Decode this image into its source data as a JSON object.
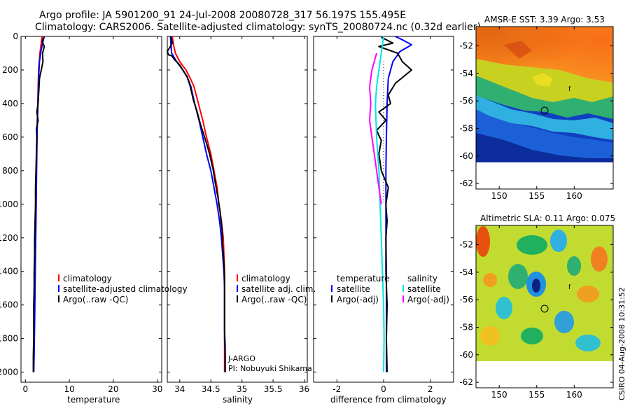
{
  "title_line1": "Argo profile: JA 5901200_91 24-Jul-2008 20080728_317 56.197S 155.495E",
  "title_line2": "Climatology: CARS2006. Satellite-adjusted climatology: synTS_20080724.nc (0.32d earlier)",
  "colors": {
    "clim": "#ff0000",
    "sat": "#0000ff",
    "argo": "#000000",
    "sal_sat": "#00e5e5",
    "sal_argo": "#ff00ff"
  },
  "chart_data": [
    {
      "type": "line",
      "name": "temperature",
      "xlabel": "temperature",
      "ylabel": "",
      "xlim": [
        -1,
        31
      ],
      "ylim": [
        2060,
        0
      ],
      "xticks": [
        0,
        10,
        20,
        30
      ],
      "yticks": [
        0,
        200,
        400,
        600,
        800,
        1000,
        1200,
        1400,
        1600,
        1800,
        2000
      ],
      "legend": [
        "climatology",
        "satellite-adjusted climatology",
        "Argo(..raw -QC)"
      ],
      "series": [
        {
          "name": "climatology",
          "color": "clim",
          "points": [
            [
              3.8,
              0
            ],
            [
              3.6,
              40
            ],
            [
              3.3,
              100
            ],
            [
              3.0,
              200
            ],
            [
              2.9,
              300
            ],
            [
              2.8,
              400
            ],
            [
              2.7,
              500
            ],
            [
              2.6,
              600
            ],
            [
              2.5,
              800
            ],
            [
              2.4,
              1000
            ],
            [
              2.3,
              1200
            ],
            [
              2.2,
              1400
            ],
            [
              2.1,
              1600
            ],
            [
              2.0,
              1800
            ],
            [
              1.9,
              2000
            ]
          ]
        },
        {
          "name": "satellite-adjusted climatology",
          "color": "sat",
          "points": [
            [
              4.3,
              0
            ],
            [
              4.0,
              30
            ],
            [
              3.6,
              80
            ],
            [
              3.2,
              150
            ],
            [
              3.0,
              250
            ],
            [
              2.9,
              350
            ],
            [
              2.8,
              450
            ],
            [
              2.7,
              550
            ],
            [
              2.6,
              700
            ],
            [
              2.5,
              900
            ],
            [
              2.4,
              1100
            ],
            [
              2.3,
              1300
            ],
            [
              2.2,
              1500
            ],
            [
              2.1,
              1700
            ],
            [
              2.0,
              1900
            ],
            [
              1.9,
              2000
            ]
          ]
        },
        {
          "name": "Argo(..raw -QC)",
          "color": "argo",
          "points": [
            [
              4.2,
              5
            ],
            [
              3.8,
              30
            ],
            [
              4.3,
              60
            ],
            [
              3.9,
              100
            ],
            [
              4.0,
              150
            ],
            [
              3.6,
              200
            ],
            [
              3.2,
              250
            ],
            [
              3.1,
              300
            ],
            [
              3.0,
              350
            ],
            [
              2.9,
              400
            ],
            [
              2.6,
              450
            ],
            [
              2.9,
              500
            ],
            [
              2.5,
              550
            ],
            [
              2.6,
              600
            ],
            [
              2.5,
              700
            ],
            [
              2.4,
              800
            ],
            [
              2.3,
              900
            ],
            [
              2.3,
              1000
            ],
            [
              2.2,
              1100
            ],
            [
              2.1,
              1200
            ],
            [
              2.1,
              1300
            ],
            [
              2.0,
              1400
            ],
            [
              2.0,
              1500
            ],
            [
              1.9,
              1600
            ],
            [
              1.9,
              1700
            ],
            [
              1.9,
              1800
            ],
            [
              1.8,
              1900
            ],
            [
              1.8,
              2000
            ]
          ]
        }
      ]
    },
    {
      "type": "line",
      "name": "salinity",
      "xlabel": "salinity",
      "ylabel": "",
      "xlim": [
        33.8,
        36.05
      ],
      "ylim": [
        2060,
        0
      ],
      "xticks": [
        34,
        34.5,
        35,
        35.5,
        36
      ],
      "legend": [
        "climatology",
        "satellite adj. clim.",
        "Argo(..raw -QC)"
      ],
      "annotation": [
        "J-ARGO",
        "PI: Nobuyuki Shikama"
      ],
      "series": [
        {
          "name": "climatology",
          "color": "clim",
          "points": [
            [
              33.88,
              0
            ],
            [
              33.9,
              50
            ],
            [
              33.93,
              100
            ],
            [
              34.0,
              150
            ],
            [
              34.1,
              200
            ],
            [
              34.17,
              250
            ],
            [
              34.23,
              300
            ],
            [
              34.3,
              400
            ],
            [
              34.37,
              500
            ],
            [
              34.43,
              600
            ],
            [
              34.5,
              700
            ],
            [
              34.55,
              800
            ],
            [
              34.6,
              900
            ],
            [
              34.63,
              1000
            ],
            [
              34.67,
              1100
            ],
            [
              34.7,
              1200
            ],
            [
              34.71,
              1300
            ],
            [
              34.72,
              1400
            ],
            [
              34.72,
              1500
            ],
            [
              34.72,
              1600
            ],
            [
              34.72,
              1700
            ],
            [
              34.72,
              1800
            ],
            [
              34.72,
              1900
            ],
            [
              34.72,
              2000
            ]
          ]
        },
        {
          "name": "satellite adj. clim.",
          "color": "sat",
          "points": [
            [
              33.85,
              0
            ],
            [
              33.86,
              50
            ],
            [
              33.87,
              100
            ],
            [
              33.95,
              150
            ],
            [
              34.05,
              200
            ],
            [
              34.13,
              250
            ],
            [
              34.18,
              300
            ],
            [
              34.24,
              400
            ],
            [
              34.31,
              500
            ],
            [
              34.37,
              600
            ],
            [
              34.43,
              700
            ],
            [
              34.5,
              800
            ],
            [
              34.55,
              900
            ],
            [
              34.6,
              1000
            ],
            [
              34.64,
              1100
            ],
            [
              34.67,
              1200
            ],
            [
              34.69,
              1300
            ],
            [
              34.71,
              1400
            ],
            [
              34.72,
              1500
            ],
            [
              34.72,
              1600
            ],
            [
              34.72,
              1700
            ],
            [
              34.72,
              1800
            ],
            [
              34.73,
              1900
            ],
            [
              34.73,
              2000
            ]
          ]
        },
        {
          "name": "Argo(..raw -QC)",
          "color": "argo",
          "points": [
            [
              33.86,
              0
            ],
            [
              33.88,
              40
            ],
            [
              33.8,
              90
            ],
            [
              33.82,
              110
            ],
            [
              33.87,
              115
            ],
            [
              33.92,
              140
            ],
            [
              34.0,
              170
            ],
            [
              34.05,
              200
            ],
            [
              34.12,
              240
            ],
            [
              34.17,
              300
            ],
            [
              34.22,
              380
            ],
            [
              34.28,
              450
            ],
            [
              34.33,
              520
            ],
            [
              34.4,
              600
            ],
            [
              34.44,
              650
            ],
            [
              34.48,
              700
            ],
            [
              34.54,
              800
            ],
            [
              34.57,
              870
            ],
            [
              34.61,
              950
            ],
            [
              34.63,
              1000
            ],
            [
              34.65,
              1050
            ],
            [
              34.68,
              1150
            ],
            [
              34.69,
              1250
            ],
            [
              34.71,
              1350
            ],
            [
              34.72,
              1450
            ],
            [
              34.72,
              1550
            ],
            [
              34.72,
              1650
            ],
            [
              34.72,
              1750
            ],
            [
              34.73,
              1850
            ],
            [
              34.73,
              2000
            ]
          ]
        }
      ]
    },
    {
      "type": "line",
      "name": "difference",
      "xlabel": "difference from climatology",
      "ylabel": "",
      "xlim": [
        -3,
        3
      ],
      "ylim": [
        2060,
        0
      ],
      "xticks": [
        -2,
        0,
        2
      ],
      "legend_left": [
        "temperature",
        "satellite",
        "Argo(-adj)"
      ],
      "legend_right": [
        "salinity",
        "satellite",
        "Argo(-adj)"
      ],
      "series": [
        {
          "name": "temperature satellite",
          "color": "sat",
          "points": [
            [
              0.5,
              0
            ],
            [
              0.8,
              20
            ],
            [
              1.2,
              50
            ],
            [
              0.7,
              90
            ],
            [
              0.4,
              150
            ],
            [
              0.2,
              250
            ],
            [
              0.15,
              400
            ],
            [
              0.12,
              600
            ],
            [
              0.1,
              800
            ],
            [
              0.1,
              1000
            ],
            [
              0.1,
              1200
            ],
            [
              0.12,
              1400
            ],
            [
              0.12,
              1600
            ],
            [
              0.12,
              1800
            ],
            [
              0.12,
              2000
            ]
          ]
        },
        {
          "name": "temperature Argo(-adj)",
          "color": "argo",
          "points": [
            [
              -0.1,
              5
            ],
            [
              0.4,
              40
            ],
            [
              -0.2,
              60
            ],
            [
              0.6,
              100
            ],
            [
              0.8,
              150
            ],
            [
              1.2,
              200
            ],
            [
              0.5,
              280
            ],
            [
              0.2,
              350
            ],
            [
              0.3,
              400
            ],
            [
              -0.2,
              450
            ],
            [
              0.1,
              500
            ],
            [
              -0.3,
              560
            ],
            [
              -0.1,
              620
            ],
            [
              -0.2,
              700
            ],
            [
              -0.1,
              800
            ],
            [
              0.2,
              900
            ],
            [
              0.1,
              1000
            ],
            [
              0.15,
              1100
            ],
            [
              0.1,
              1200
            ],
            [
              0.1,
              1400
            ],
            [
              0.15,
              1600
            ],
            [
              0.12,
              1800
            ],
            [
              0.15,
              2000
            ]
          ]
        },
        {
          "name": "salinity satellite",
          "color": "sal_sat",
          "points": [
            [
              0.0,
              0
            ],
            [
              -0.1,
              100
            ],
            [
              -0.2,
              200
            ],
            [
              -0.3,
              300
            ],
            [
              -0.35,
              400
            ],
            [
              -0.3,
              600
            ],
            [
              -0.2,
              800
            ],
            [
              -0.15,
              1000
            ],
            [
              -0.1,
              1200
            ],
            [
              -0.05,
              1400
            ],
            [
              0.0,
              1600
            ],
            [
              0.02,
              1800
            ],
            [
              0.0,
              2000
            ]
          ]
        },
        {
          "name": "salinity Argo(-adj)",
          "color": "sal_argo",
          "points": [
            [
              -0.3,
              100
            ],
            [
              -0.5,
              200
            ],
            [
              -0.6,
              300
            ],
            [
              -0.55,
              400
            ],
            [
              -0.6,
              500
            ],
            [
              -0.5,
              600
            ],
            [
              -0.4,
              700
            ],
            [
              -0.3,
              800
            ],
            [
              -0.2,
              900
            ],
            [
              -0.1,
              1000
            ]
          ]
        }
      ]
    }
  ],
  "map_top": {
    "title": "AMSR-E SST: 3.39 Argo: 3.53",
    "xticks": [
      150,
      155,
      160
    ],
    "yticks": [
      -52,
      -54,
      -56,
      -58,
      -60,
      -62
    ]
  },
  "map_bottom": {
    "title": "Altimetric SLA: 0.11 Argo: 0.075",
    "xticks": [
      150,
      155,
      160
    ],
    "yticks": [
      -52,
      -54,
      -56,
      -58,
      -60,
      -62
    ]
  },
  "credit": "CSIRO 04-Aug-2008 10:31:52"
}
